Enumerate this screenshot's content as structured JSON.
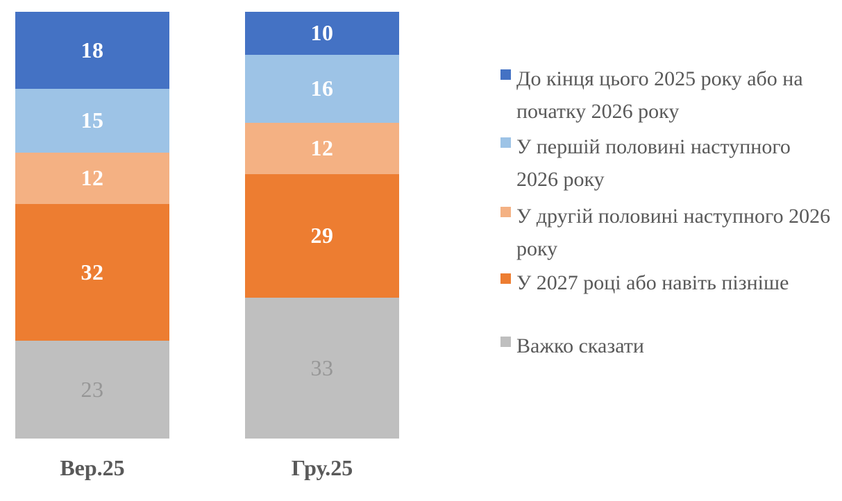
{
  "chart_data": {
    "type": "bar",
    "stacked": true,
    "orientation": "vertical",
    "title": "",
    "xlabel": "",
    "ylabel": "",
    "ylim": [
      0,
      100
    ],
    "grid": false,
    "axes_visible": false,
    "legend_position": "right",
    "categories": [
      "Вер.25",
      "Гру.25"
    ],
    "series": [
      {
        "name": "До кінця цього 2025 року або на початку 2026 року",
        "color": "#4472C4",
        "label_color": "#FFFFFF",
        "label_bold": true,
        "values": [
          18,
          10
        ]
      },
      {
        "name": "У першій половині наступного 2026 року",
        "color": "#9DC3E6",
        "label_color": "#FFFFFF",
        "label_bold": true,
        "values": [
          15,
          16
        ]
      },
      {
        "name": "У другій половині наступного 2026 року",
        "color": "#F4B183",
        "label_color": "#FFFFFF",
        "label_bold": true,
        "values": [
          12,
          12
        ]
      },
      {
        "name": "У 2027 році або навіть пізніше",
        "color": "#ED7D31",
        "label_color": "#FFFFFF",
        "label_bold": true,
        "values": [
          32,
          29
        ]
      },
      {
        "name": "Важко сказати",
        "color": "#BFBFBF",
        "label_color": "#969696",
        "label_bold": false,
        "values": [
          23,
          33
        ]
      }
    ],
    "stack_total": 100
  },
  "axis": {
    "category_label_color": "#595959"
  },
  "legend": {
    "text_color": "#595959"
  }
}
